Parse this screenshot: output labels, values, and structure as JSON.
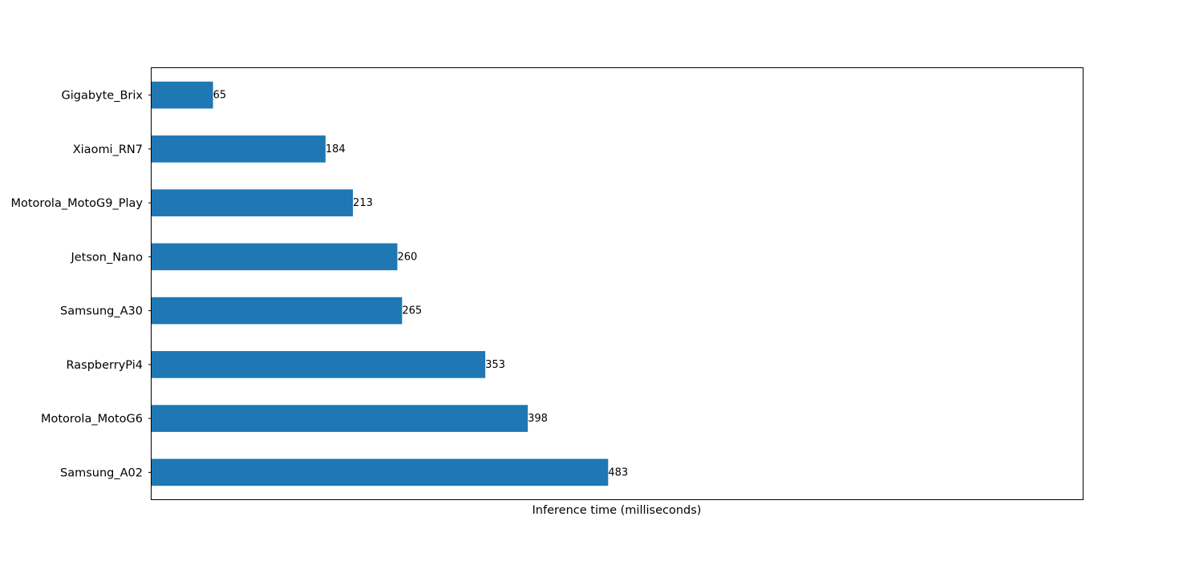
{
  "chart_data": {
    "type": "bar",
    "orientation": "horizontal",
    "categories": [
      "Gigabyte_Brix",
      "Xiaomi_RN7",
      "Motorola_MotoG9_Play",
      "Jetson_Nano",
      "Samsung_A30",
      "RaspberryPi4",
      "Motorola_MotoG6",
      "Samsung_A02"
    ],
    "values": [
      65,
      184,
      213,
      260,
      265,
      353,
      398,
      483
    ],
    "data_labels": [
      "65",
      "184",
      "213",
      "260",
      "265",
      "353",
      "398",
      "483"
    ],
    "title": "",
    "xlabel": "Inference time (milliseconds)",
    "ylabel": "",
    "xlim": [
      0,
      985
    ],
    "x_ticks_shown": false,
    "grid": false,
    "bar_color": "#1f77b4",
    "frame_color": "#000000"
  }
}
